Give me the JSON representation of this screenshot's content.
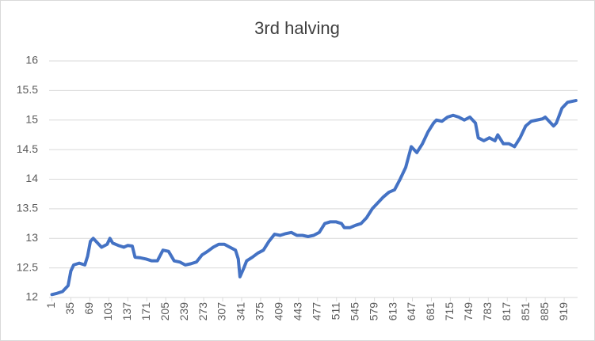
{
  "chart_data": {
    "type": "line",
    "title": "3rd halving",
    "x": [
      1,
      10,
      20,
      30,
      35,
      40,
      50,
      60,
      65,
      70,
      75,
      80,
      90,
      100,
      105,
      110,
      120,
      130,
      137,
      145,
      150,
      160,
      170,
      180,
      190,
      200,
      210,
      220,
      230,
      240,
      250,
      260,
      270,
      280,
      290,
      300,
      310,
      320,
      330,
      335,
      338,
      345,
      350,
      360,
      370,
      380,
      390,
      400,
      410,
      420,
      430,
      440,
      450,
      460,
      470,
      480,
      490,
      500,
      510,
      520,
      525,
      535,
      545,
      555,
      565,
      575,
      585,
      595,
      605,
      615,
      625,
      635,
      645,
      650,
      655,
      665,
      675,
      685,
      690,
      700,
      710,
      720,
      730,
      740,
      750,
      760,
      765,
      775,
      785,
      795,
      800,
      810,
      820,
      830,
      840,
      850,
      860,
      870,
      880,
      885,
      890,
      900,
      905,
      915,
      925,
      935,
      940
    ],
    "series": [
      {
        "color": "#4472c4",
        "values": [
          12.05,
          12.07,
          12.1,
          12.2,
          12.45,
          12.55,
          12.58,
          12.55,
          12.7,
          12.95,
          13.0,
          12.95,
          12.85,
          12.9,
          13.0,
          12.92,
          12.88,
          12.85,
          12.88,
          12.87,
          12.68,
          12.67,
          12.65,
          12.62,
          12.62,
          12.8,
          12.78,
          12.62,
          12.6,
          12.55,
          12.57,
          12.6,
          12.72,
          12.78,
          12.85,
          12.9,
          12.9,
          12.85,
          12.8,
          12.65,
          12.35,
          12.5,
          12.62,
          12.68,
          12.75,
          12.8,
          12.95,
          13.07,
          13.05,
          13.08,
          13.1,
          13.05,
          13.05,
          13.03,
          13.05,
          13.1,
          13.25,
          13.28,
          13.28,
          13.25,
          13.18,
          13.18,
          13.22,
          13.25,
          13.35,
          13.5,
          13.6,
          13.7,
          13.78,
          13.82,
          14.0,
          14.2,
          14.55,
          14.5,
          14.45,
          14.6,
          14.8,
          14.95,
          15.0,
          14.98,
          15.05,
          15.08,
          15.05,
          15.0,
          15.05,
          14.95,
          14.7,
          14.65,
          14.7,
          14.65,
          14.75,
          14.6,
          14.6,
          14.55,
          14.7,
          14.9,
          14.98,
          15.0,
          15.02,
          15.05,
          15.0,
          14.9,
          14.95,
          15.2,
          15.3,
          15.32,
          15.33
        ]
      }
    ],
    "xlim": [
      -4,
      943
    ],
    "xticks": [
      1,
      35,
      69,
      103,
      137,
      171,
      205,
      239,
      273,
      307,
      341,
      375,
      409,
      443,
      477,
      511,
      545,
      579,
      613,
      647,
      681,
      715,
      749,
      783,
      817,
      851,
      885,
      919
    ],
    "ylim": [
      12,
      16
    ],
    "yticks": [
      12,
      12.5,
      13,
      13.5,
      14,
      14.5,
      15,
      15.5,
      16
    ],
    "grid": true
  }
}
